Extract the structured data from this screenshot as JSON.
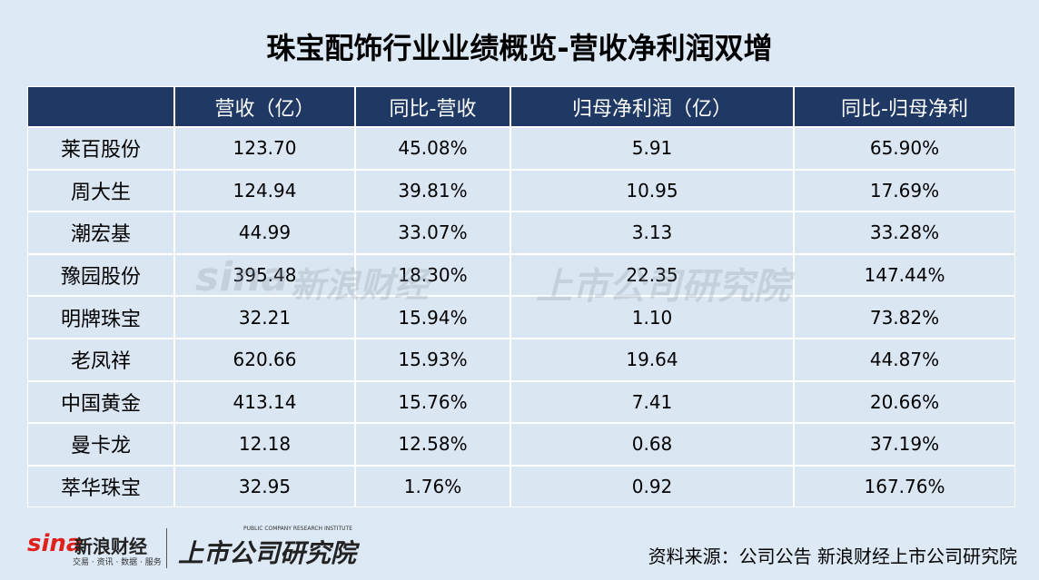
{
  "header": {
    "title": "珠宝配饰行业业绩概览-营收净利润双增"
  },
  "table": {
    "columns": [
      "",
      "营收（亿）",
      "同比-营收",
      "归母净利润（亿）",
      "同比-归母净利"
    ],
    "rows": [
      [
        "莱百股份",
        "123.70",
        "45.08%",
        "5.91",
        "65.90%"
      ],
      [
        "周大生",
        "124.94",
        "39.81%",
        "10.95",
        "17.69%"
      ],
      [
        "潮宏基",
        "44.99",
        "33.07%",
        "3.13",
        "33.28%"
      ],
      [
        "豫园股份",
        "395.48",
        "18.30%",
        "22.35",
        "147.44%"
      ],
      [
        "明牌珠宝",
        "32.21",
        "15.94%",
        "1.10",
        "73.82%"
      ],
      [
        "老凤祥",
        "620.66",
        "15.93%",
        "19.64",
        "44.87%"
      ],
      [
        "中国黄金",
        "413.14",
        "15.76%",
        "7.41",
        "20.66%"
      ],
      [
        "曼卡龙",
        "12.18",
        "12.58%",
        "0.68",
        "37.19%"
      ],
      [
        "萃华珠宝",
        "32.95",
        "1.76%",
        "0.92",
        "167.76%"
      ]
    ]
  },
  "footer": {
    "logo_sina": "sina",
    "logo_name": "新浪财经",
    "logo_slogan": "交易 · 资讯 · 数据 · 服务",
    "institute_en": "PUBLIC COMPANY RESEARCH INSTITUTE",
    "institute": "上市公司研究院",
    "source": "资料来源：公司公告 新浪财经上市公司研究院"
  }
}
